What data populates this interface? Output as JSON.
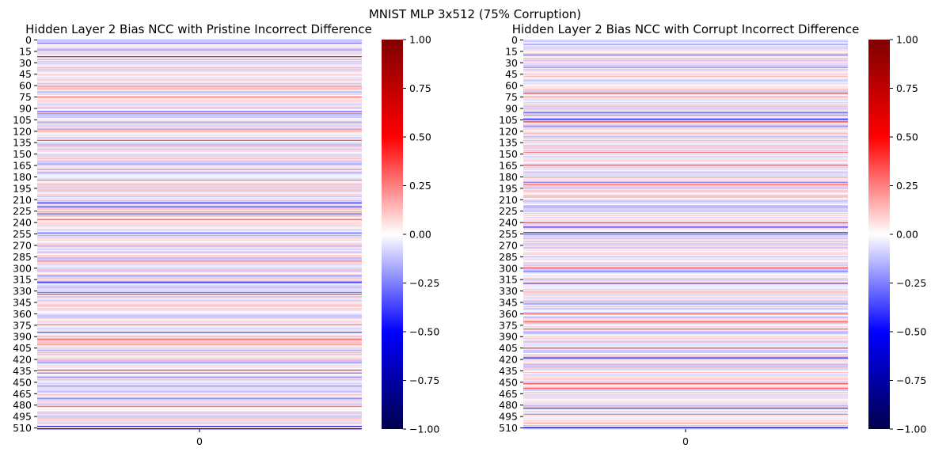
{
  "figure": {
    "suptitle": "MNIST MLP 3x512 (75% Corruption)"
  },
  "chart_data": [
    {
      "type": "heatmap",
      "title": "Hidden Layer 2 Bias NCC with Pristine Incorrect Difference",
      "xlabel": "",
      "ylabel": "",
      "rows": 512,
      "columns": 1,
      "x_tick_labels": [
        "0"
      ],
      "y_tick_labels": [
        "0",
        "15",
        "30",
        "45",
        "60",
        "75",
        "90",
        "105",
        "120",
        "135",
        "150",
        "165",
        "180",
        "195",
        "210",
        "225",
        "240",
        "255",
        "270",
        "285",
        "300",
        "315",
        "330",
        "345",
        "360",
        "375",
        "390",
        "405",
        "420",
        "435",
        "450",
        "465",
        "480",
        "495",
        "510"
      ],
      "colormap": "seismic",
      "vmin": -1.0,
      "vmax": 1.0,
      "colorbar_ticks": [
        "1.00",
        "0.75",
        "0.50",
        "0.25",
        "0.00",
        "−0.25",
        "−0.50",
        "−0.75",
        "−1.00"
      ],
      "seed": 7,
      "highlights": [
        {
          "row": 22,
          "value": -0.45
        },
        {
          "row": 75,
          "value": 0.35
        },
        {
          "row": 132,
          "value": 0.4
        },
        {
          "row": 214,
          "value": -0.55
        },
        {
          "row": 219,
          "value": -0.3
        },
        {
          "row": 228,
          "value": 0.3
        },
        {
          "row": 319,
          "value": -0.4
        },
        {
          "row": 332,
          "value": 0.35
        },
        {
          "row": 384,
          "value": -0.35
        },
        {
          "row": 400,
          "value": 0.3
        },
        {
          "row": 438,
          "value": 0.35
        },
        {
          "row": 443,
          "value": -0.3
        },
        {
          "row": 455,
          "value": 0.3
        },
        {
          "row": 482,
          "value": 0.3
        },
        {
          "row": 508,
          "value": -0.7
        },
        {
          "row": 511,
          "value": -0.6
        }
      ]
    },
    {
      "type": "heatmap",
      "title": "Hidden Layer 2 Bias NCC with Corrupt Incorrect Difference",
      "xlabel": "",
      "ylabel": "",
      "rows": 512,
      "columns": 1,
      "x_tick_labels": [
        "0"
      ],
      "y_tick_labels": [
        "0",
        "15",
        "30",
        "45",
        "60",
        "75",
        "90",
        "105",
        "120",
        "135",
        "150",
        "165",
        "180",
        "195",
        "210",
        "225",
        "240",
        "255",
        "270",
        "285",
        "300",
        "315",
        "330",
        "345",
        "360",
        "375",
        "390",
        "405",
        "420",
        "435",
        "450",
        "465",
        "480",
        "495",
        "510"
      ],
      "colormap": "seismic",
      "vmin": -1.0,
      "vmax": 1.0,
      "colorbar_ticks": [
        "1.00",
        "0.75",
        "0.50",
        "0.25",
        "0.00",
        "−0.25",
        "−0.50",
        "−0.75",
        "−1.00"
      ],
      "seed": 19,
      "highlights": [
        {
          "row": 70,
          "value": 0.45
        },
        {
          "row": 104,
          "value": -0.5
        },
        {
          "row": 108,
          "value": 0.3
        },
        {
          "row": 165,
          "value": 0.4
        },
        {
          "row": 240,
          "value": 0.45
        },
        {
          "row": 246,
          "value": -0.45
        },
        {
          "row": 253,
          "value": -0.4
        },
        {
          "row": 300,
          "value": 0.4
        },
        {
          "row": 320,
          "value": -0.45
        },
        {
          "row": 370,
          "value": 0.4
        },
        {
          "row": 380,
          "value": 0.35
        },
        {
          "row": 418,
          "value": -0.6
        },
        {
          "row": 452,
          "value": 0.4
        },
        {
          "row": 484,
          "value": -0.4
        },
        {
          "row": 510,
          "value": -0.4
        }
      ]
    }
  ]
}
